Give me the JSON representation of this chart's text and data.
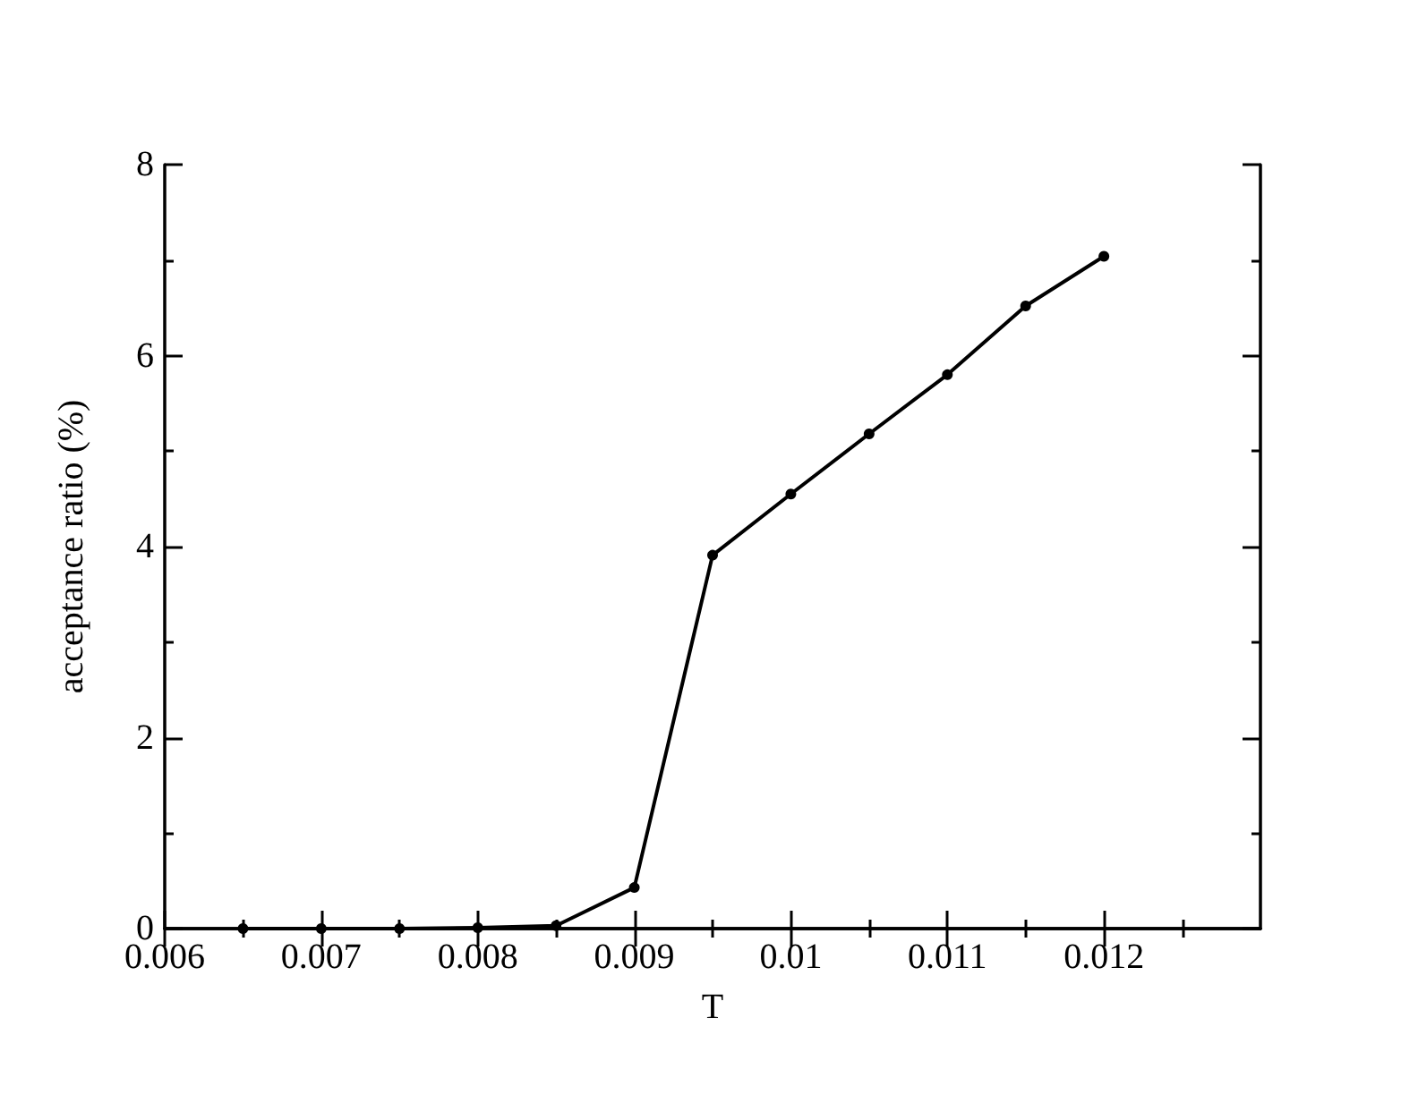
{
  "chart_data": {
    "type": "line",
    "xlabel": "T",
    "ylabel": "acceptance ratio (%)",
    "x": [
      0.0065,
      0.007,
      0.0075,
      0.008,
      0.0085,
      0.009,
      0.0095,
      0.01,
      0.0105,
      0.011,
      0.0115,
      0.012
    ],
    "series": [
      {
        "color": "#000000",
        "values": [
          0,
          0,
          0,
          0.01,
          0.03,
          0.43,
          3.91,
          4.55,
          5.18,
          5.8,
          6.52,
          7.04
        ]
      }
    ],
    "xlim": [
      0.006,
      0.013
    ],
    "xticks": [
      0.006,
      0.007,
      0.008,
      0.009,
      0.01,
      0.011,
      0.012
    ],
    "ylim": [
      0,
      8
    ],
    "yticks": [
      0,
      2,
      4,
      6,
      8
    ],
    "marker": "circle",
    "line_style": "solid"
  }
}
